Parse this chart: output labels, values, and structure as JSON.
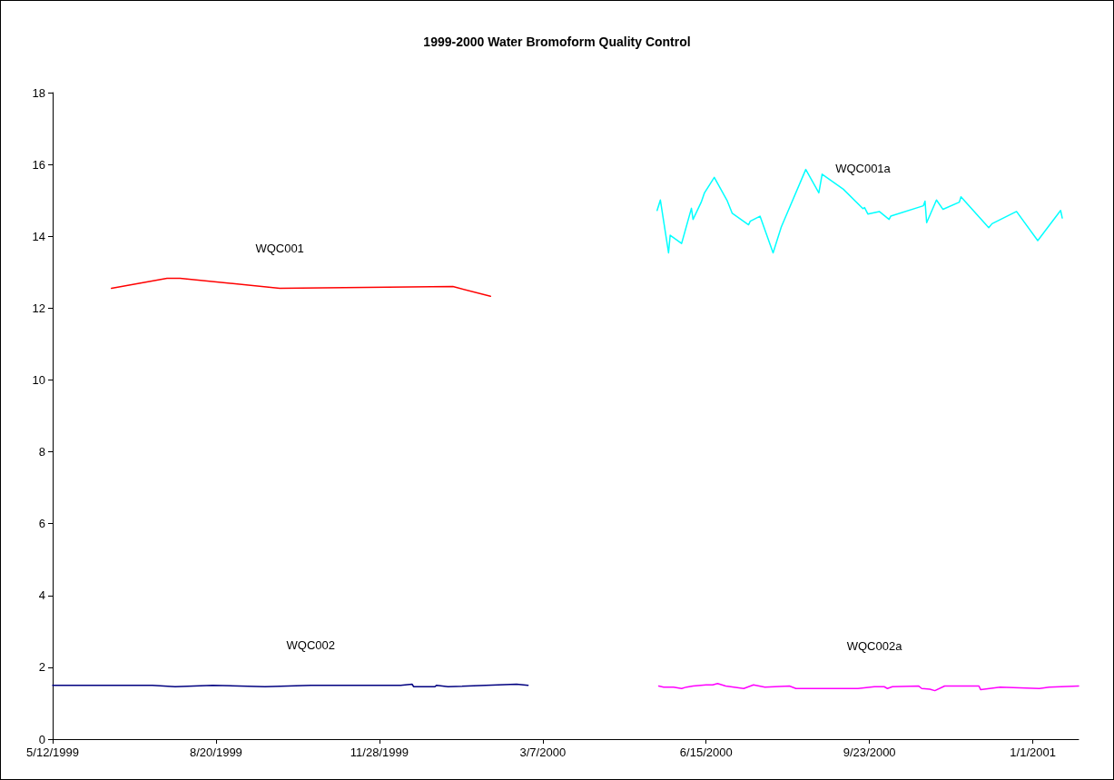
{
  "chart_data": {
    "type": "line",
    "title": "1999-2000 Water Bromoform Quality Control",
    "xlim": [
      "1999-05-12",
      "2001-01-29"
    ],
    "xticks": [
      {
        "value": "1999-05-12",
        "label": "5/12/1999"
      },
      {
        "value": "1999-08-20",
        "label": "8/20/1999"
      },
      {
        "value": "1999-11-28",
        "label": "11/28/1999"
      },
      {
        "value": "2000-03-07",
        "label": "3/7/2000"
      },
      {
        "value": "2000-06-15",
        "label": "6/15/2000"
      },
      {
        "value": "2000-09-23",
        "label": "9/23/2000"
      },
      {
        "value": "2001-01-01",
        "label": "1/1/2001"
      }
    ],
    "ylim": [
      0,
      18
    ],
    "yticks": [
      0,
      2,
      4,
      6,
      8,
      10,
      12,
      14,
      16,
      18
    ],
    "grid": false,
    "legend": false,
    "marker": "none",
    "line_style": "solid",
    "series": [
      {
        "name": "WQC001",
        "color": "#ff0000",
        "x": [
          "1999-06-17",
          "1999-07-21",
          "1999-07-29",
          "1999-09-28",
          "2000-01-12",
          "2000-02-04"
        ],
        "values": [
          12.55,
          12.83,
          12.83,
          12.55,
          12.6,
          12.33
        ]
      },
      {
        "name": "WQC001a",
        "color": "#00ffff",
        "x": [
          "2000-05-16",
          "2000-05-18",
          "2000-05-23",
          "2000-05-24",
          "2000-05-31",
          "2000-06-06",
          "2000-06-07",
          "2000-06-12",
          "2000-06-14",
          "2000-06-20",
          "2000-06-28",
          "2000-07-01",
          "2000-07-11",
          "2000-07-12",
          "2000-07-18",
          "2000-07-26",
          "2000-07-31",
          "2000-08-15",
          "2000-08-23",
          "2000-08-25",
          "2000-09-07",
          "2000-09-19",
          "2000-09-20",
          "2000-09-22",
          "2000-09-29",
          "2000-10-05",
          "2000-10-06",
          "2000-10-26",
          "2000-10-27",
          "2000-10-28",
          "2000-11-03",
          "2000-11-07",
          "2000-11-17",
          "2000-11-18",
          "2000-12-05",
          "2000-12-07",
          "2000-12-22",
          "2001-01-04",
          "2001-01-18",
          "2001-01-19"
        ],
        "values": [
          14.72,
          15.01,
          13.54,
          14.03,
          13.8,
          14.78,
          14.47,
          14.95,
          15.21,
          15.64,
          14.98,
          14.64,
          14.32,
          14.42,
          14.56,
          13.54,
          14.26,
          15.86,
          15.21,
          15.73,
          15.31,
          14.77,
          14.8,
          14.62,
          14.69,
          14.47,
          14.56,
          14.85,
          14.98,
          14.38,
          15.01,
          14.75,
          14.95,
          15.1,
          14.24,
          14.35,
          14.69,
          13.88,
          14.72,
          14.51
        ]
      },
      {
        "name": "WQC002",
        "color": "#000080",
        "x": [
          "1999-05-12",
          "1999-06-14",
          "1999-07-12",
          "1999-07-26",
          "1999-08-18",
          "1999-09-19",
          "1999-10-17",
          "1999-12-11",
          "1999-12-18",
          "1999-12-19",
          "2000-01-01",
          "2000-01-02",
          "2000-01-09",
          "2000-02-20",
          "2000-02-27"
        ],
        "values": [
          1.5,
          1.5,
          1.5,
          1.46,
          1.5,
          1.46,
          1.5,
          1.5,
          1.53,
          1.46,
          1.46,
          1.5,
          1.46,
          1.53,
          1.5
        ]
      },
      {
        "name": "WQC002a",
        "color": "#ff00ff",
        "x": [
          "2000-05-17",
          "2000-05-20",
          "2000-05-26",
          "2000-05-31",
          "2000-06-03",
          "2000-06-07",
          "2000-06-15",
          "2000-06-19",
          "2000-06-22",
          "2000-06-27",
          "2000-07-08",
          "2000-07-14",
          "2000-07-21",
          "2000-08-05",
          "2000-08-09",
          "2000-09-16",
          "2000-09-26",
          "2000-10-02",
          "2000-10-04",
          "2000-10-07",
          "2000-10-23",
          "2000-10-25",
          "2000-10-30",
          "2000-11-02",
          "2000-11-08",
          "2000-11-29",
          "2000-11-30",
          "2000-12-12",
          "2001-01-05",
          "2001-01-11",
          "2001-01-29"
        ],
        "values": [
          1.48,
          1.45,
          1.45,
          1.41,
          1.45,
          1.48,
          1.51,
          1.51,
          1.55,
          1.48,
          1.41,
          1.51,
          1.45,
          1.48,
          1.41,
          1.41,
          1.46,
          1.46,
          1.41,
          1.46,
          1.48,
          1.41,
          1.39,
          1.35,
          1.48,
          1.48,
          1.38,
          1.45,
          1.41,
          1.45,
          1.48
        ]
      }
    ]
  }
}
